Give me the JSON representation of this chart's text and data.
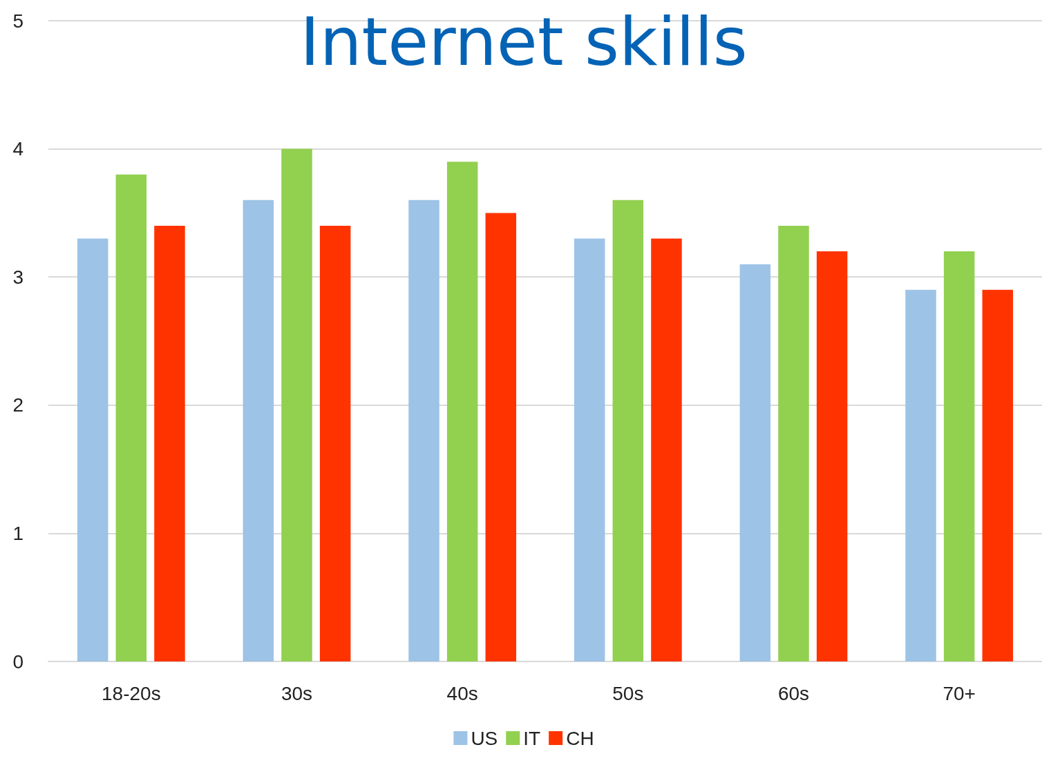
{
  "chart_data": {
    "type": "bar",
    "title": "Internet skills",
    "categories": [
      "18-20s",
      "30s",
      "40s",
      "50s",
      "60s",
      "70+"
    ],
    "series": [
      {
        "name": "US",
        "color": "#9dc3e6",
        "values": [
          3.3,
          3.6,
          3.6,
          3.3,
          3.1,
          2.9
        ]
      },
      {
        "name": "IT",
        "color": "#92d050",
        "values": [
          3.8,
          4.0,
          3.9,
          3.6,
          3.4,
          3.2
        ]
      },
      {
        "name": "CH",
        "color": "#ff3300",
        "values": [
          3.4,
          3.4,
          3.5,
          3.3,
          3.2,
          2.9
        ]
      }
    ],
    "ylim": [
      0,
      5
    ],
    "yticks": [
      0,
      1,
      2,
      3,
      4,
      5
    ],
    "grid": "y",
    "legend": "bottom"
  }
}
